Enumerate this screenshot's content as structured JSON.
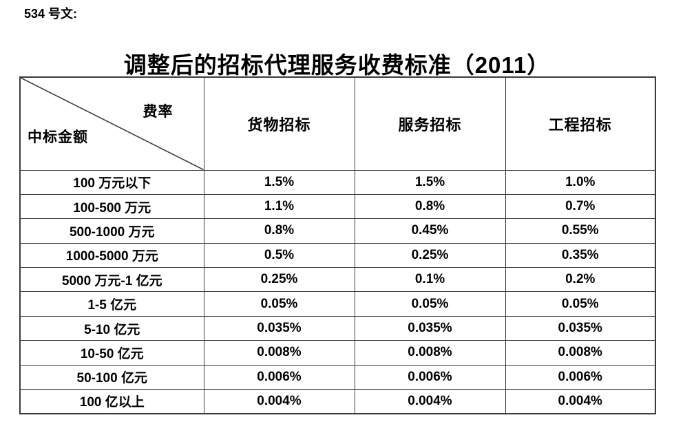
{
  "page": {
    "doc_label": "534 号文:",
    "title": "调整后的招标代理服务收费标准（2011）"
  },
  "table": {
    "corner": {
      "rate_label": "费率",
      "amount_label": "中标金额"
    },
    "columns": [
      "货物招标",
      "服务招标",
      "工程招标"
    ],
    "rows": [
      {
        "label": "100 万元以下",
        "values": [
          "1.5%",
          "1.5%",
          "1.0%"
        ]
      },
      {
        "label": "100-500 万元",
        "values": [
          "1.1%",
          "0.8%",
          "0.7%"
        ]
      },
      {
        "label": "500-1000 万元",
        "values": [
          "0.8%",
          "0.45%",
          "0.55%"
        ]
      },
      {
        "label": "1000-5000 万元",
        "values": [
          "0.5%",
          "0.25%",
          "0.35%"
        ]
      },
      {
        "label": "5000 万元-1 亿元",
        "values": [
          "0.25%",
          "0.1%",
          "0.2%"
        ]
      },
      {
        "label": "1-5 亿元",
        "values": [
          "0.05%",
          "0.05%",
          "0.05%"
        ]
      },
      {
        "label": "5-10 亿元",
        "values": [
          "0.035%",
          "0.035%",
          "0.035%"
        ]
      },
      {
        "label": "10-50 亿元",
        "values": [
          "0.008%",
          "0.008%",
          "0.008%"
        ]
      },
      {
        "label": "50-100 亿元",
        "values": [
          "0.006%",
          "0.006%",
          "0.006%"
        ]
      },
      {
        "label": "100 亿以上",
        "values": [
          "0.004%",
          "0.004%",
          "0.004%"
        ]
      }
    ]
  },
  "colors": {
    "border": "#3a3a3a",
    "text": "#000000",
    "background": "#ffffff"
  }
}
